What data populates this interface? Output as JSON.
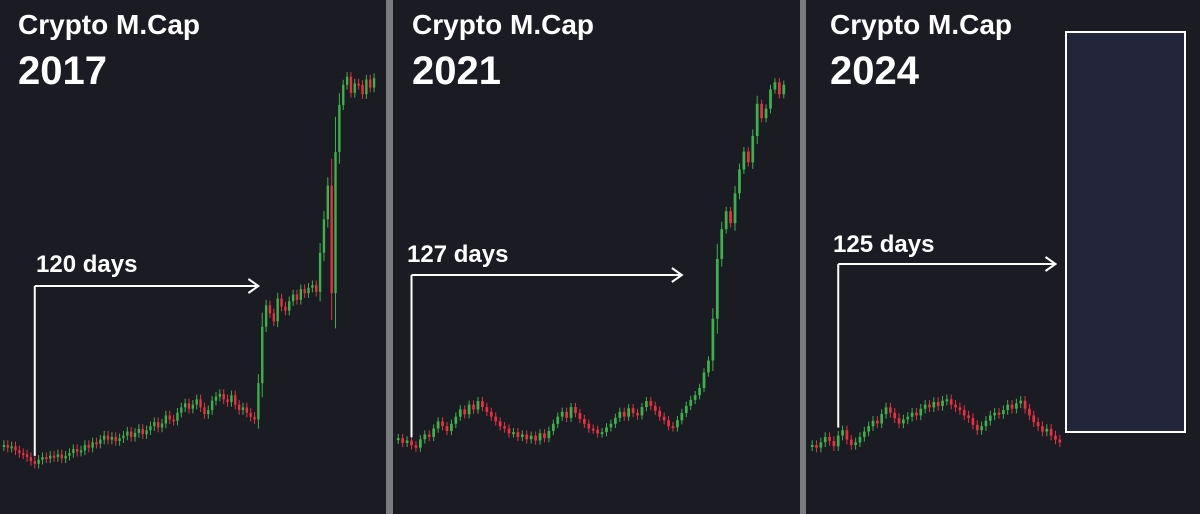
{
  "colors": {
    "panel_bg": "#1b1b24",
    "divider": "#7a7b7f",
    "up": "#3cb24a",
    "down": "#e8303f",
    "annotation": "#ffffff",
    "future_box_fill": "#23253a"
  },
  "chart_data": [
    {
      "type": "candlestick",
      "title": "Crypto M.Cap",
      "subtitle": "2017",
      "annotation": {
        "label": "120 days",
        "start_index": 8,
        "end_index": 66
      },
      "grid": false,
      "closes": [
        3.2,
        3.0,
        3.1,
        2.8,
        2.6,
        2.5,
        2.3,
        2.0,
        1.8,
        2.1,
        2.3,
        2.2,
        2.4,
        2.3,
        2.5,
        2.2,
        2.4,
        2.6,
        2.9,
        2.7,
        2.8,
        3.2,
        3.0,
        3.4,
        3.3,
        3.6,
        3.9,
        3.6,
        3.8,
        3.5,
        3.7,
        3.9,
        4.2,
        3.8,
        4.1,
        4.4,
        4.0,
        4.3,
        4.6,
        4.9,
        4.5,
        4.8,
        5.4,
        5.1,
        5.0,
        5.6,
        6.0,
        6.3,
        5.9,
        6.2,
        6.6,
        6.0,
        5.5,
        5.8,
        6.5,
        6.8,
        7.0,
        6.6,
        6.4,
        6.9,
        6.2,
        5.8,
        6.0,
        5.6,
        5.3,
        5.1,
        7.8,
        12.0,
        13.6,
        13.0,
        12.4,
        14.1,
        13.5,
        13.2,
        13.9,
        14.4,
        14.0,
        14.8,
        14.5,
        14.9,
        15.1,
        14.6,
        17.5,
        20.0,
        22.5,
        14.5,
        25.0,
        28.5,
        30.0,
        30.6,
        29.4,
        30.1,
        30.0,
        29.3,
        30.4,
        29.8,
        30.5
      ]
    },
    {
      "type": "candlestick",
      "title": "Crypto M.Cap",
      "subtitle": "2021",
      "annotation": {
        "label": "127 days",
        "start_index": 3,
        "end_index": 64
      },
      "grid": false,
      "closes": [
        4.0,
        3.6,
        3.8,
        3.4,
        3.2,
        3.9,
        4.3,
        4.1,
        4.8,
        5.4,
        5.0,
        4.6,
        5.2,
        5.8,
        6.4,
        6.0,
        6.8,
        6.4,
        7.1,
        6.6,
        6.2,
        5.8,
        5.4,
        5.0,
        4.8,
        4.4,
        4.5,
        4.1,
        4.3,
        3.9,
        4.2,
        3.8,
        4.4,
        4.0,
        4.6,
        5.2,
        5.8,
        6.2,
        5.7,
        6.6,
        6.1,
        5.6,
        5.2,
        4.8,
        4.7,
        4.4,
        4.5,
        4.9,
        5.2,
        5.7,
        6.2,
        5.8,
        6.5,
        6.1,
        5.9,
        6.6,
        7.1,
        6.7,
        6.3,
        5.8,
        5.5,
        5.0,
        4.9,
        5.5,
        6.1,
        6.7,
        7.2,
        7.6,
        8.2,
        9.5,
        10.5,
        14.0,
        19.0,
        21.5,
        23.0,
        22.0,
        24.5,
        26.5,
        28.0,
        27.1,
        29.3,
        32.0,
        30.8,
        31.6,
        33.2,
        33.8,
        32.8,
        33.6
      ]
    },
    {
      "type": "candlestick",
      "title": "Crypto M.Cap",
      "subtitle": "2024",
      "annotation": {
        "label": "125 days",
        "start_index": 6,
        "end_index": 56
      },
      "grid": false,
      "closes": [
        3.2,
        3.0,
        3.4,
        3.8,
        3.5,
        3.1,
        3.9,
        4.3,
        3.6,
        3.2,
        3.4,
        3.8,
        4.2,
        4.6,
        5.0,
        4.8,
        5.5,
        6.0,
        5.6,
        5.2,
        4.8,
        5.1,
        5.3,
        5.6,
        5.4,
        5.9,
        6.2,
        6.0,
        6.4,
        6.1,
        6.5,
        6.6,
        6.2,
        6.0,
        5.8,
        5.4,
        5.2,
        4.7,
        4.3,
        4.6,
        5.0,
        5.4,
        5.6,
        5.5,
        5.8,
        6.2,
        5.9,
        6.3,
        6.5,
        5.9,
        5.4,
        4.9,
        4.6,
        4.2,
        4.4,
        3.9,
        3.6,
        3.4
      ]
    }
  ]
}
